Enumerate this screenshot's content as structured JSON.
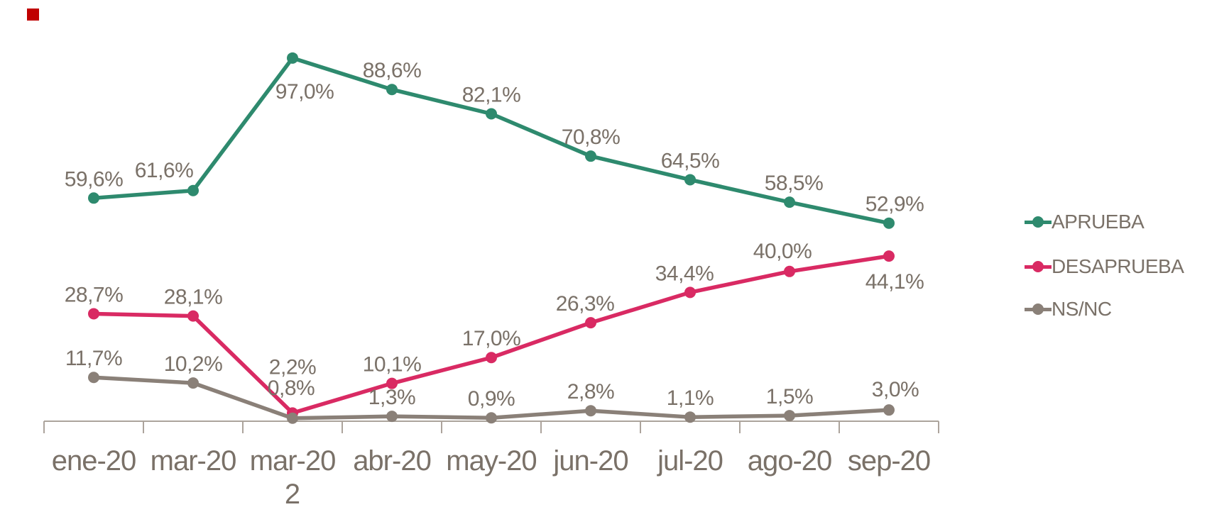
{
  "page": {
    "background_color": "#ffffff",
    "text_color": "#7a7168",
    "axis_color": "#aca49c"
  },
  "decorations": {
    "corner_square_color": "#c00000"
  },
  "chart_data": {
    "type": "line",
    "title": "",
    "xlabel": "",
    "ylabel": "",
    "grid": false,
    "legend_position": "right",
    "ylim": [
      0,
      100
    ],
    "value_format": "percent-comma-decimal",
    "categories": [
      "ene-20",
      "mar-20",
      "mar-20 2",
      "abr-20",
      "may-20",
      "jun-20",
      "jul-20",
      "ago-20",
      "sep-20"
    ],
    "series": [
      {
        "name": "APRUEBA",
        "color": "#2e8a6e",
        "values": [
          59.6,
          61.6,
          97.0,
          88.6,
          82.1,
          70.8,
          64.5,
          58.5,
          52.9
        ],
        "labels": [
          "59,6%",
          "61,6%",
          "97,0%",
          "88,6%",
          "82,1%",
          "70,8%",
          "64,5%",
          "58,5%",
          "52,9%"
        ]
      },
      {
        "name": "DESAPRUEBA",
        "color": "#d92a63",
        "values": [
          28.7,
          28.1,
          2.2,
          10.1,
          17.0,
          26.3,
          34.4,
          40.0,
          44.1
        ],
        "labels": [
          "28,7%",
          "28,1%",
          "2,2%",
          "10,1%",
          "17,0%",
          "26,3%",
          "34,4%",
          "40,0%",
          "44,1%"
        ]
      },
      {
        "name": "NS/NC",
        "color": "#8a8078",
        "values": [
          11.7,
          10.2,
          0.8,
          1.3,
          0.9,
          2.8,
          1.1,
          1.5,
          3.0
        ],
        "labels": [
          "11,7%",
          "10,2%",
          "0,8%",
          "1,3%",
          "0,9%",
          "2,8%",
          "1,1%",
          "1,5%",
          "3,0%"
        ]
      }
    ],
    "label_offsets": {
      "0": {
        "1": [
          -41,
          -19
        ],
        "2": [
          17,
          57
        ],
        "7": [
          6,
          -17
        ],
        "8": [
          8,
          -17
        ]
      },
      "1": {
        "2": [
          0,
          -55
        ],
        "5": [
          -8,
          -17
        ],
        "6": [
          -8,
          -17
        ],
        "7": [
          -10,
          -19
        ],
        "8": [
          8,
          46
        ]
      },
      "2": {
        "2": [
          -2,
          -33
        ],
        "8": [
          9,
          -19
        ]
      }
    }
  }
}
